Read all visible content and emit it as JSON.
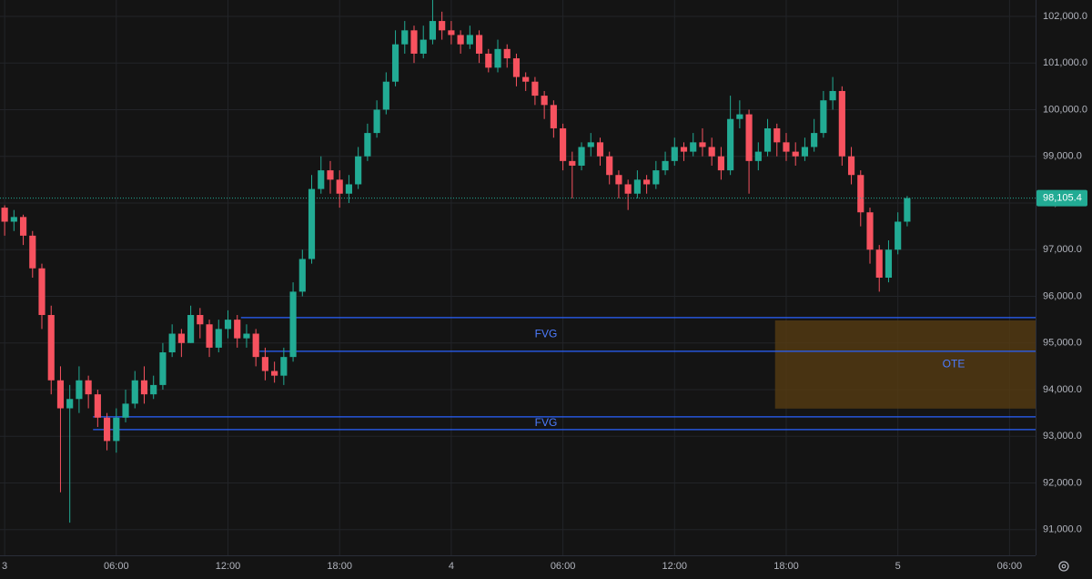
{
  "chart_data": {
    "type": "candlestick",
    "x": [
      -0.5,
      0,
      0.5,
      1,
      1.5,
      2,
      2.5,
      3,
      3.5,
      4,
      4.5,
      5,
      5.5,
      6,
      6.5,
      7,
      7.5,
      8,
      8.5,
      9,
      9.5,
      10,
      10.5,
      11,
      11.5,
      12,
      12.5,
      13,
      13.5,
      14,
      14.5,
      15,
      15.5,
      16,
      16.5,
      17,
      17.5,
      18,
      18.5,
      19,
      19.5,
      20,
      20.5,
      21,
      21.5,
      22,
      22.5,
      23,
      23.5,
      24,
      24.5,
      25,
      25.5,
      26,
      26.5,
      27,
      27.5,
      28,
      28.5,
      29,
      29.5,
      30,
      30.5,
      31,
      31.5,
      32,
      32.5,
      33,
      33.5,
      34,
      34.5,
      35,
      35.5,
      36,
      36.5,
      37,
      37.5,
      38,
      38.5,
      39,
      39.5,
      40,
      40.5,
      41,
      41.5,
      42,
      42.5,
      43,
      43.5,
      44,
      44.5,
      45,
      45.5,
      46,
      46.5,
      47,
      47.5,
      48,
      48.5
    ],
    "open": [
      97700,
      97900,
      97600,
      97700,
      97300,
      96600,
      95600,
      94200,
      93600,
      93800,
      94200,
      93900,
      93400,
      92900,
      93400,
      93700,
      94200,
      93900,
      94100,
      94800,
      95200,
      95000,
      95600,
      95400,
      94900,
      95300,
      95500,
      95100,
      95200,
      94700,
      94400,
      94300,
      94700,
      96100,
      96800,
      98300,
      98700,
      98500,
      98200,
      98400,
      99000,
      99500,
      100000,
      100600,
      101400,
      101700,
      101200,
      101500,
      101900,
      101700,
      101600,
      101400,
      101600,
      101200,
      100900,
      101300,
      101100,
      100700,
      100600,
      100300,
      100100,
      99600,
      98900,
      98800,
      99200,
      99300,
      99000,
      98600,
      98400,
      98200,
      98500,
      98400,
      98700,
      98900,
      99200,
      99100,
      99300,
      99200,
      99000,
      98700,
      99800,
      99900,
      98900,
      99100,
      99600,
      99300,
      99100,
      99000,
      99200,
      99500,
      100200,
      100400,
      99000,
      98600,
      97800,
      97000,
      96400,
      97000,
      97600
    ],
    "high": [
      98000,
      97950,
      97850,
      97750,
      97400,
      96700,
      95800,
      94500,
      94100,
      94500,
      94300,
      94000,
      93500,
      93600,
      94000,
      94400,
      94500,
      94300,
      95000,
      95400,
      95300,
      95800,
      95750,
      95500,
      95500,
      95700,
      95600,
      95400,
      95300,
      94900,
      94600,
      94900,
      96300,
      97000,
      98600,
      99000,
      98900,
      98700,
      98600,
      99200,
      99700,
      100200,
      100800,
      101700,
      101900,
      101800,
      101800,
      102350,
      102100,
      101900,
      101700,
      101800,
      101700,
      101300,
      101500,
      101400,
      101200,
      100800,
      100700,
      100400,
      100200,
      99700,
      99100,
      99300,
      99500,
      99400,
      99100,
      98700,
      98500,
      98700,
      98600,
      98900,
      99100,
      99400,
      99300,
      99500,
      99600,
      99400,
      99200,
      100300,
      100200,
      100000,
      99300,
      99800,
      99700,
      99500,
      99300,
      99400,
      99800,
      100400,
      100700,
      100500,
      99200,
      98700,
      97900,
      97100,
      97200,
      97800,
      98150
    ],
    "low": [
      97500,
      97300,
      97400,
      97100,
      96400,
      95300,
      93900,
      91800,
      91150,
      93500,
      93600,
      93200,
      92700,
      92650,
      93300,
      93600,
      93700,
      93800,
      94000,
      94700,
      94700,
      95000,
      95100,
      94700,
      94800,
      95100,
      94900,
      94900,
      94500,
      94200,
      94150,
      94100,
      94600,
      96000,
      96700,
      98200,
      98200,
      97900,
      98000,
      98300,
      98900,
      99400,
      99900,
      100500,
      101200,
      101000,
      101100,
      101400,
      101500,
      101400,
      101200,
      101300,
      101000,
      100800,
      100800,
      100900,
      100500,
      100400,
      100100,
      99800,
      99400,
      98700,
      98100,
      98700,
      99000,
      98800,
      98400,
      98100,
      97850,
      98100,
      98200,
      98300,
      98600,
      98800,
      98900,
      99000,
      99000,
      98800,
      98500,
      98600,
      99600,
      98200,
      98700,
      99000,
      99000,
      98900,
      98800,
      98900,
      99100,
      99400,
      100000,
      98800,
      98400,
      97500,
      96700,
      96100,
      96300,
      96900,
      97500
    ],
    "close": [
      97900,
      97600,
      97700,
      97300,
      96600,
      95600,
      94200,
      93600,
      93800,
      94200,
      93900,
      93400,
      92900,
      93400,
      93700,
      94200,
      93900,
      94100,
      94800,
      95200,
      95000,
      95600,
      95400,
      94900,
      95300,
      95500,
      95100,
      95200,
      94700,
      94400,
      94300,
      94700,
      96100,
      96800,
      98300,
      98700,
      98500,
      98200,
      98400,
      99000,
      99500,
      100000,
      100600,
      101400,
      101700,
      101200,
      101500,
      101900,
      101700,
      101600,
      101400,
      101600,
      101200,
      100900,
      101300,
      101100,
      100700,
      100600,
      100300,
      100100,
      99600,
      98900,
      98800,
      99200,
      99300,
      99000,
      98600,
      98400,
      98200,
      98500,
      98400,
      98700,
      98900,
      99200,
      99100,
      99300,
      99200,
      99000,
      98700,
      99800,
      99900,
      98900,
      99100,
      99600,
      99300,
      99100,
      99000,
      99200,
      99500,
      100200,
      100400,
      99000,
      98600,
      97800,
      97000,
      96400,
      97000,
      97600,
      98105.4
    ],
    "up_color": "#22ab94",
    "down_color": "#f7525f",
    "xlim": [
      -0.25,
      55.4
    ],
    "xticks": [
      {
        "value": 0,
        "label": "3"
      },
      {
        "value": 6,
        "label": "06:00"
      },
      {
        "value": 12,
        "label": "12:00"
      },
      {
        "value": 18,
        "label": "18:00"
      },
      {
        "value": 24,
        "label": "4"
      },
      {
        "value": 30,
        "label": "06:00"
      },
      {
        "value": 36,
        "label": "12:00"
      },
      {
        "value": 42,
        "label": "18:00"
      },
      {
        "value": 48,
        "label": "5"
      },
      {
        "value": 54,
        "label": "06:00"
      }
    ],
    "ylim": [
      90450,
      102350
    ],
    "yticks": [
      {
        "value": 91000,
        "label": "91,000.0"
      },
      {
        "value": 92000,
        "label": "92,000.0"
      },
      {
        "value": 93000,
        "label": "93,000.0"
      },
      {
        "value": 94000,
        "label": "94,000.0"
      },
      {
        "value": 95000,
        "label": "95,000.0"
      },
      {
        "value": 96000,
        "label": "96,000.0"
      },
      {
        "value": 97000,
        "label": "97,000.0"
      },
      {
        "value": 98000,
        "label": "98,000.0"
      },
      {
        "value": 99000,
        "label": "99,000.0"
      },
      {
        "value": 100000,
        "label": "100,000.0"
      },
      {
        "value": 101000,
        "label": "101,000.0"
      },
      {
        "value": 102000,
        "label": "102,000.0"
      }
    ],
    "grid": true,
    "last_price": {
      "value": 98105.4,
      "label": "98,105.4"
    },
    "zones": [
      {
        "label": "FVG",
        "top": 95544,
        "bottom": 94822,
        "top_start": 12.7,
        "bottom_start": 13.7,
        "color": "#2962ff"
      },
      {
        "label": "FVG",
        "top": 93418,
        "bottom": 93145,
        "top_start": 4.75,
        "bottom_start": 4.75,
        "color": "#2962ff"
      }
    ],
    "box": {
      "label": "OTE",
      "top": 95485,
      "bottom": 93594,
      "start": 41.4,
      "color": "#5a3d12"
    }
  }
}
